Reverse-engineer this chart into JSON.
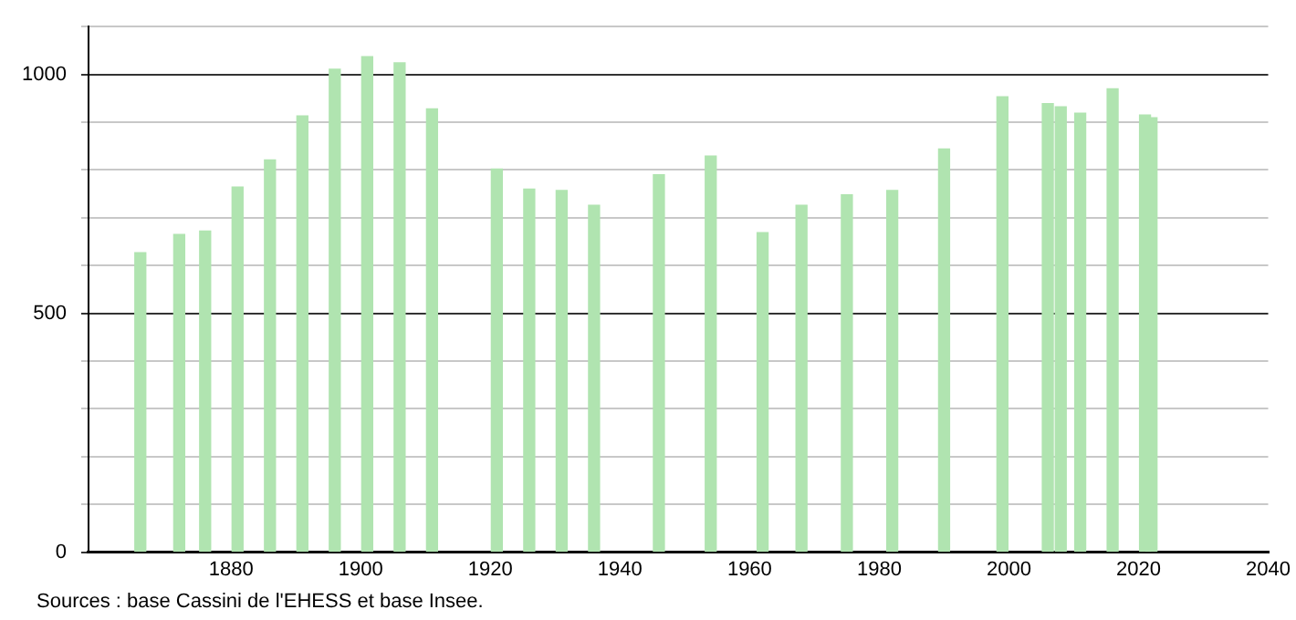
{
  "chart_data": {
    "type": "bar",
    "x": [
      1866,
      1872,
      1876,
      1881,
      1886,
      1891,
      1896,
      1901,
      1906,
      1911,
      1921,
      1926,
      1931,
      1936,
      1946,
      1954,
      1962,
      1968,
      1975,
      1982,
      1990,
      1999,
      2006,
      2008,
      2011,
      2016,
      2021,
      2022
    ],
    "values": [
      627,
      665,
      672,
      764,
      821,
      913,
      1011,
      1037,
      1024,
      928,
      802,
      760,
      757,
      726,
      790,
      829,
      669,
      726,
      748,
      757,
      844,
      953,
      939,
      932,
      919,
      970,
      915,
      909
    ],
    "color": "#b0e4b0",
    "xlim": [
      1858,
      2040
    ],
    "xticks": [
      1880,
      1900,
      1920,
      1940,
      1960,
      1980,
      2000,
      2020,
      2040
    ],
    "ylim": [
      0,
      1100
    ],
    "yticks": [
      0,
      {
        "value": 100,
        "label": null
      },
      {
        "value": 200,
        "label": null
      },
      {
        "value": 300,
        "label": null
      },
      {
        "value": 400,
        "label": null
      },
      500,
      {
        "value": 600,
        "label": null
      },
      {
        "value": 700,
        "label": null
      },
      {
        "value": 800,
        "label": null
      },
      {
        "value": 900,
        "label": null
      },
      1000,
      {
        "value": 1100,
        "label": null
      }
    ],
    "grid": "y",
    "annotations": [
      "Sources : base Cassini de l'EHESS et base Insee."
    ]
  }
}
